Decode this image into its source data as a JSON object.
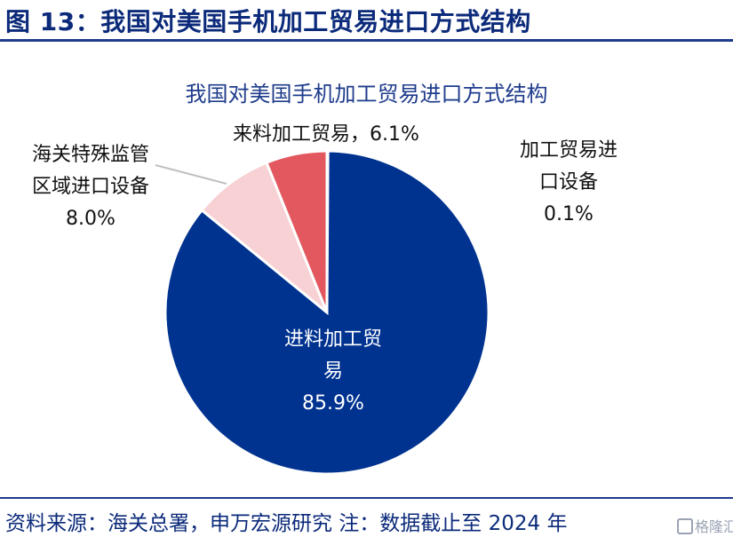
{
  "header": {
    "title": "图 13：我国对美国手机加工贸易进口方式结构"
  },
  "chart_data": {
    "type": "pie",
    "title": "我国对美国手机加工贸易进口方式结构",
    "start_angle_deg": 0,
    "direction": "clockwise",
    "slices": [
      {
        "label": "加工贸易进口设备",
        "label_lines": [
          "加工贸易进",
          "口设备"
        ],
        "value": 0.1,
        "display": "0.1%",
        "color": "#17347f"
      },
      {
        "label": "进料加工贸易",
        "label_lines": [
          "进料加工贸",
          "易"
        ],
        "value": 85.9,
        "display": "85.9%",
        "color": "#003390"
      },
      {
        "label": "海关特殊监管区域进口设备",
        "label_lines": [
          "海关特殊监管",
          "区域进口设备"
        ],
        "value": 8.0,
        "display": "8.0%",
        "color": "#f7d1d3"
      },
      {
        "label": "来料加工贸易",
        "label_lines": [
          "来料加工贸易，"
        ],
        "value": 6.1,
        "display": "6.1%",
        "color": "#e2585e"
      }
    ]
  },
  "footer": {
    "source": "资料来源：海关总署，申万宏源研究 注：数据截止至 2024 年"
  },
  "watermark": {
    "text": "格隆汇"
  }
}
